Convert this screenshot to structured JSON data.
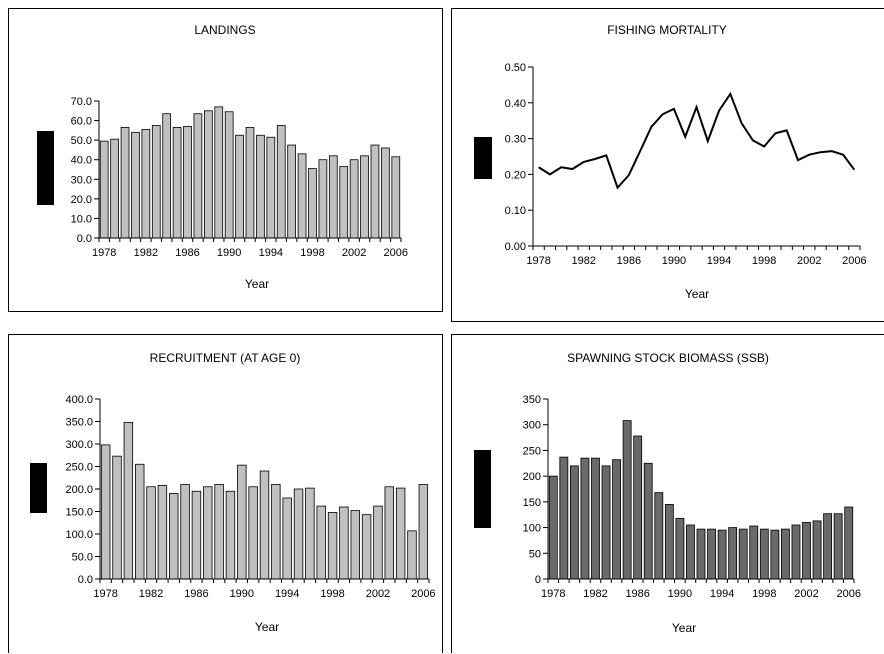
{
  "chart_data": [
    {
      "type": "bar",
      "title": "LANDINGS",
      "xlabel": "Year",
      "ylabel": "",
      "ylim": [
        0,
        70
      ],
      "ytick_labels": [
        "0.0",
        "10.0",
        "20.0",
        "30.0",
        "40.0",
        "50.0",
        "60.0",
        "70.0"
      ],
      "xtick_labels": [
        "1978",
        "1982",
        "1986",
        "1990",
        "1994",
        "1998",
        "2002",
        "2006"
      ],
      "x": [
        1978,
        1979,
        1980,
        1981,
        1982,
        1983,
        1984,
        1985,
        1986,
        1987,
        1988,
        1989,
        1990,
        1991,
        1992,
        1993,
        1994,
        1995,
        1996,
        1997,
        1998,
        1999,
        2000,
        2001,
        2002,
        2003,
        2004,
        2005,
        2006
      ],
      "values": [
        49.5,
        50.5,
        56.5,
        54,
        55.5,
        57.5,
        63.5,
        56.5,
        57,
        63.5,
        65,
        67,
        64.5,
        52.5,
        56.5,
        52.5,
        51.5,
        57.5,
        47.5,
        43,
        35.5,
        40,
        42,
        36.5,
        40,
        42,
        47.5,
        46,
        41.5
      ],
      "bar_color": "#c0c0c0",
      "grid": false
    },
    {
      "type": "line",
      "title": "FISHING MORTALITY",
      "xlabel": "Year",
      "ylabel": "",
      "ylim": [
        0,
        0.5
      ],
      "ytick_labels": [
        "0.00",
        "0.10",
        "0.20",
        "0.30",
        "0.40",
        "0.50"
      ],
      "xtick_labels": [
        "1978",
        "1982",
        "1986",
        "1990",
        "1994",
        "1998",
        "2002",
        "2006"
      ],
      "x": [
        1978,
        1979,
        1980,
        1981,
        1982,
        1983,
        1984,
        1985,
        1986,
        1987,
        1988,
        1989,
        1990,
        1991,
        1992,
        1993,
        1994,
        1995,
        1996,
        1997,
        1998,
        1999,
        2000,
        2001,
        2002,
        2003,
        2004,
        2005,
        2006
      ],
      "values": [
        0.22,
        0.2,
        0.22,
        0.215,
        0.235,
        0.243,
        0.253,
        0.163,
        0.198,
        0.265,
        0.333,
        0.368,
        0.383,
        0.305,
        0.388,
        0.293,
        0.378,
        0.425,
        0.343,
        0.295,
        0.278,
        0.315,
        0.323,
        0.24,
        0.255,
        0.262,
        0.265,
        0.255,
        0.213
      ],
      "line_color": "#000000",
      "grid": false
    },
    {
      "type": "bar",
      "title": "RECRUITMENT (AT AGE 0)",
      "xlabel": "Year",
      "ylabel": "",
      "ylim": [
        0,
        400
      ],
      "ytick_labels": [
        "0.0",
        "50.0",
        "100.0",
        "150.0",
        "200.0",
        "250.0",
        "300.0",
        "350.0",
        "400.0"
      ],
      "xtick_labels": [
        "1978",
        "1982",
        "1986",
        "1990",
        "1994",
        "1998",
        "2002",
        "2006"
      ],
      "x": [
        1978,
        1979,
        1980,
        1981,
        1982,
        1983,
        1984,
        1985,
        1986,
        1987,
        1988,
        1989,
        1990,
        1991,
        1992,
        1993,
        1994,
        1995,
        1996,
        1997,
        1998,
        1999,
        2000,
        2001,
        2002,
        2003,
        2004,
        2005,
        2006
      ],
      "values": [
        298,
        273,
        348,
        255,
        205,
        208,
        190,
        210,
        195,
        205,
        210,
        195,
        253,
        205,
        240,
        210,
        180,
        200,
        202,
        162,
        148,
        160,
        152,
        143,
        162,
        205,
        202,
        107,
        210
      ],
      "bar_color": "#c0c0c0",
      "grid": false
    },
    {
      "type": "bar",
      "title": "SPAWNING STOCK BIOMASS (SSB)",
      "xlabel": "Year",
      "ylabel": "",
      "ylim": [
        0,
        350
      ],
      "ytick_labels": [
        "0",
        "50",
        "100",
        "150",
        "200",
        "250",
        "300",
        "350"
      ],
      "xtick_labels": [
        "1978",
        "1982",
        "1986",
        "1990",
        "1994",
        "1998",
        "2002",
        "2006"
      ],
      "x": [
        1978,
        1979,
        1980,
        1981,
        1982,
        1983,
        1984,
        1985,
        1986,
        1987,
        1988,
        1989,
        1990,
        1991,
        1992,
        1993,
        1994,
        1995,
        1996,
        1997,
        1998,
        1999,
        2000,
        2001,
        2002,
        2003,
        2004,
        2005,
        2006
      ],
      "values": [
        200,
        237,
        220,
        235,
        235,
        220,
        232,
        308,
        278,
        225,
        168,
        145,
        118,
        105,
        97,
        97,
        95,
        100,
        97,
        103,
        97,
        95,
        97,
        105,
        110,
        113,
        127,
        127,
        140
      ],
      "bar_color": "#6a6a6a",
      "grid": false
    }
  ]
}
